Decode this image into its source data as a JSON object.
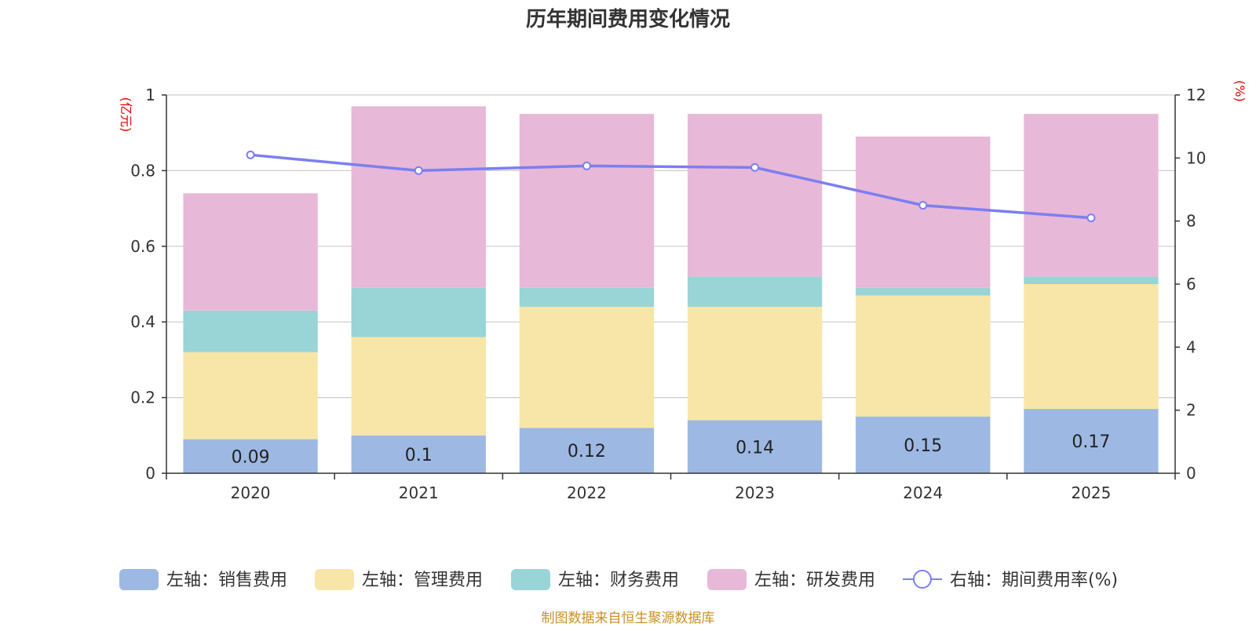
{
  "chart_data": {
    "type": "bar",
    "stacked": true,
    "title": "历年期间费用变化情况",
    "categories": [
      "2020",
      "2021",
      "2022",
      "2023",
      "2024",
      "2025"
    ],
    "left_axis": {
      "unit": "(亿元)",
      "ylim": [
        0,
        1
      ],
      "ticks": [
        "0",
        "0.2",
        "0.4",
        "0.6",
        "0.8",
        "1"
      ]
    },
    "right_axis": {
      "unit": "(%)",
      "ylim": [
        0,
        12
      ],
      "ticks": [
        "0",
        "2",
        "4",
        "6",
        "8",
        "10",
        "12"
      ]
    },
    "series": [
      {
        "name": "左轴：销售费用",
        "color": "#9db8e2",
        "values": [
          0.09,
          0.1,
          0.12,
          0.14,
          0.15,
          0.17
        ],
        "data_labels": [
          "0.09",
          "0.1",
          "0.12",
          "0.14",
          "0.15",
          "0.17"
        ]
      },
      {
        "name": "左轴：管理费用",
        "color": "#f8e6a8",
        "values": [
          0.23,
          0.26,
          0.32,
          0.3,
          0.32,
          0.33
        ]
      },
      {
        "name": "左轴：财务费用",
        "color": "#99d4d6",
        "values": [
          0.11,
          0.13,
          0.05,
          0.08,
          0.02,
          0.02
        ]
      },
      {
        "name": "左轴：研发费用",
        "color": "#e8b8d8",
        "values": [
          0.31,
          0.48,
          0.46,
          0.43,
          0.4,
          0.43
        ]
      }
    ],
    "line_series": {
      "name": "右轴：期间费用率(%)",
      "color": "#7b7ff0",
      "axis": "right",
      "values": [
        10.1,
        9.6,
        9.75,
        9.7,
        8.5,
        8.1
      ]
    },
    "grid": true,
    "legend_position": "bottom"
  },
  "footer": "制图数据来自恒生聚源数据库"
}
